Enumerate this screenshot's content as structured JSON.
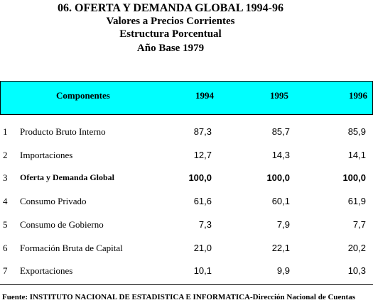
{
  "header": {
    "title": "06.  OFERTA Y DEMANDA GLOBAL 1994-96",
    "subtitles": [
      "Valores a Precios Corrientes",
      "Estructura Porcentual",
      "Año Base 1979"
    ]
  },
  "table": {
    "columns": [
      "Componentes",
      "1994",
      "1995",
      "1996"
    ],
    "rows": [
      [
        "1",
        "Producto Bruto Interno",
        "87,3",
        "85,7",
        "85,9"
      ],
      [
        "2",
        "Importaciones",
        "12,7",
        "14,3",
        "14,1"
      ],
      [
        "3",
        "Oferta y Demanda Global",
        "100,0",
        "100,0",
        "100,0"
      ],
      [
        "4",
        "Consumo Privado",
        "61,6",
        "60,1",
        "61,9"
      ],
      [
        "5",
        "Consumo de Gobierno",
        "7,3",
        "7,9",
        "7,7"
      ],
      [
        "6",
        "Formación Bruta de Capital",
        "21,0",
        "22,1",
        "20,2"
      ],
      [
        "7",
        "Exportaciones",
        "10,1",
        "9,9",
        "10,3"
      ]
    ]
  },
  "footer": {
    "source": "Fuente: INSTITUTO NACIONAL DE ESTADISTICA E INFORMATICA-Dirección Nacional de Cuentas"
  }
}
